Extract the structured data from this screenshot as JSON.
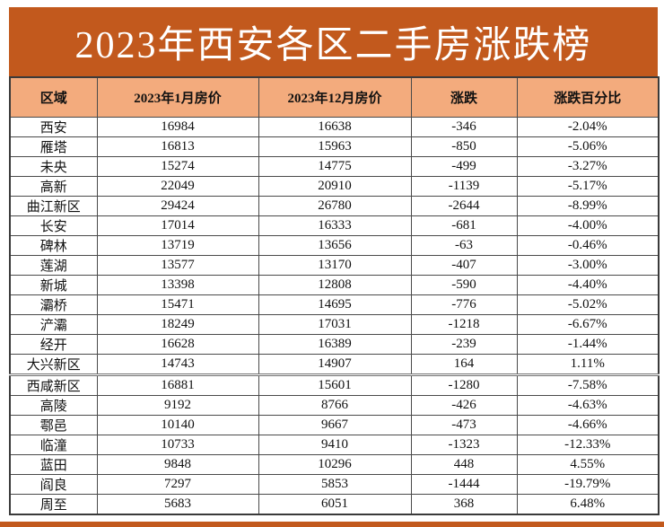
{
  "banner": {
    "title": "2023年西安各区二手房涨跌榜"
  },
  "colors": {
    "banner_bg": "#c2591d",
    "header_bg": "#f3ab7d",
    "highlight_bg": "#dbe9f4",
    "border": "#4a4a4a"
  },
  "chart_data": {
    "type": "table",
    "title": "2023年西安各区二手房涨跌榜",
    "columns": [
      "区域",
      "2023年1月房价",
      "2023年12月房价",
      "涨跌",
      "涨跌百分比"
    ],
    "rows": [
      {
        "district": "西安",
        "jan": "16984",
        "dec": "16638",
        "change": "-346",
        "pct": "-2.04%",
        "highlight": false,
        "divider": false
      },
      {
        "district": "雁塔",
        "jan": "16813",
        "dec": "15963",
        "change": "-850",
        "pct": "-5.06%",
        "highlight": false,
        "divider": false
      },
      {
        "district": "未央",
        "jan": "15274",
        "dec": "14775",
        "change": "-499",
        "pct": "-3.27%",
        "highlight": false,
        "divider": false
      },
      {
        "district": "高新",
        "jan": "22049",
        "dec": "20910",
        "change": "-1139",
        "pct": "-5.17%",
        "highlight": false,
        "divider": false
      },
      {
        "district": "曲江新区",
        "jan": "29424",
        "dec": "26780",
        "change": "-2644",
        "pct": "-8.99%",
        "highlight": false,
        "divider": false
      },
      {
        "district": "长安",
        "jan": "17014",
        "dec": "16333",
        "change": "-681",
        "pct": "-4.00%",
        "highlight": false,
        "divider": false
      },
      {
        "district": "碑林",
        "jan": "13719",
        "dec": "13656",
        "change": "-63",
        "pct": "-0.46%",
        "highlight": false,
        "divider": false
      },
      {
        "district": "莲湖",
        "jan": "13577",
        "dec": "13170",
        "change": "-407",
        "pct": "-3.00%",
        "highlight": false,
        "divider": false
      },
      {
        "district": "新城",
        "jan": "13398",
        "dec": "12808",
        "change": "-590",
        "pct": "-4.40%",
        "highlight": false,
        "divider": false
      },
      {
        "district": "灞桥",
        "jan": "15471",
        "dec": "14695",
        "change": "-776",
        "pct": "-5.02%",
        "highlight": false,
        "divider": false
      },
      {
        "district": "浐灞",
        "jan": "18249",
        "dec": "17031",
        "change": "-1218",
        "pct": "-6.67%",
        "highlight": false,
        "divider": false
      },
      {
        "district": "经开",
        "jan": "16628",
        "dec": "16389",
        "change": "-239",
        "pct": "-1.44%",
        "highlight": false,
        "divider": false
      },
      {
        "district": "大兴新区",
        "jan": "14743",
        "dec": "14907",
        "change": "164",
        "pct": "1.11%",
        "highlight": true,
        "divider": true
      },
      {
        "district": "西咸新区",
        "jan": "16881",
        "dec": "15601",
        "change": "-1280",
        "pct": "-7.58%",
        "highlight": false,
        "divider": false
      },
      {
        "district": "高陵",
        "jan": "9192",
        "dec": "8766",
        "change": "-426",
        "pct": "-4.63%",
        "highlight": false,
        "divider": false
      },
      {
        "district": "鄠邑",
        "jan": "10140",
        "dec": "9667",
        "change": "-473",
        "pct": "-4.66%",
        "highlight": false,
        "divider": false
      },
      {
        "district": "临潼",
        "jan": "10733",
        "dec": "9410",
        "change": "-1323",
        "pct": "-12.33%",
        "highlight": false,
        "divider": false
      },
      {
        "district": "蓝田",
        "jan": "9848",
        "dec": "10296",
        "change": "448",
        "pct": "4.55%",
        "highlight": true,
        "divider": false
      },
      {
        "district": "阎良",
        "jan": "7297",
        "dec": "5853",
        "change": "-1444",
        "pct": "-19.79%",
        "highlight": false,
        "divider": false
      },
      {
        "district": "周至",
        "jan": "5683",
        "dec": "6051",
        "change": "368",
        "pct": "6.48%",
        "highlight": true,
        "divider": false
      }
    ],
    "legend_position": "none",
    "grid": true
  }
}
